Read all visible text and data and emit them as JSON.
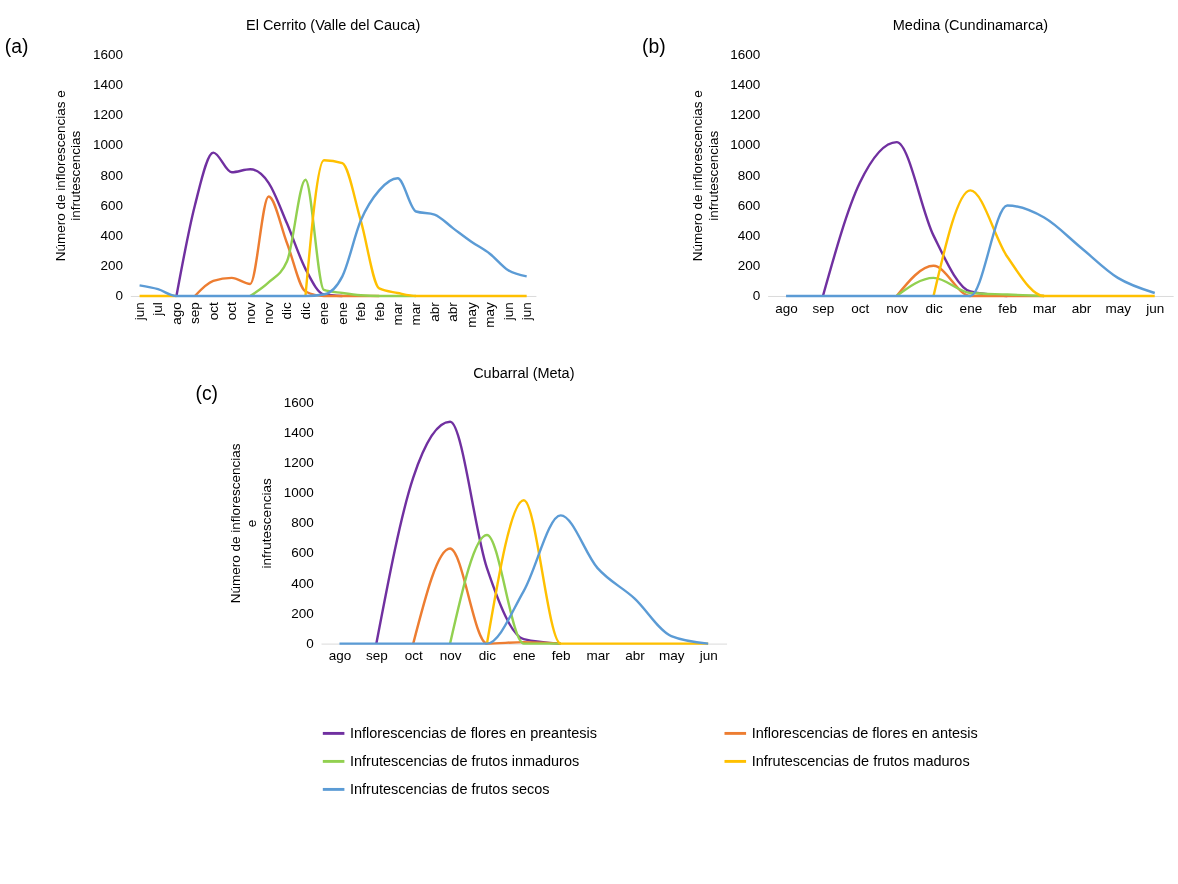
{
  "chart_data": [
    {
      "type": "line",
      "title": "El Cerrito (Valle del Cauca)",
      "ylabel": "Número  de inflorescencias e\ninfrutescencias",
      "annotations": [
        "(a)"
      ],
      "legend": "bottom",
      "grid": false,
      "marker": "none",
      "line_style": "solid",
      "categories": [
        "jun",
        "jul",
        "ago",
        "sep",
        "oct",
        "oct",
        "nov",
        "nov",
        "dic",
        "dic",
        "ene",
        "ene",
        "feb",
        "feb",
        "mar",
        "mar",
        "abr",
        "abr",
        "may",
        "may",
        "jun",
        "jun"
      ],
      "ylim": [
        0,
        1600
      ],
      "yticks": [
        0,
        200,
        400,
        600,
        800,
        1000,
        1200,
        1400,
        1600
      ],
      "series": [
        {
          "name": "Inflorescencias de flores  en preantesis",
          "color": "#7030a0",
          "values": [
            null,
            null,
            0,
            600,
            950,
            820,
            840,
            750,
            480,
            180,
            10,
            0,
            null,
            null,
            null,
            null,
            null,
            null,
            null,
            null,
            null,
            null
          ]
        },
        {
          "name": "Inflorescencias de flores  en antesis",
          "color": "#ed7d31",
          "values": [
            null,
            null,
            null,
            0,
            100,
            120,
            80,
            660,
            350,
            30,
            0,
            0,
            0,
            0,
            null,
            null,
            null,
            null,
            null,
            null,
            null,
            null
          ]
        },
        {
          "name": "Infrutescencias de frutos inmaduros",
          "color": "#92d050",
          "values": [
            null,
            null,
            null,
            null,
            null,
            null,
            0,
            90,
            230,
            770,
            40,
            20,
            5,
            0,
            0,
            0,
            null,
            null,
            null,
            null,
            null,
            null
          ]
        },
        {
          "name": "Infrutescencias de frutos maduros",
          "color": "#ffc000",
          "values": [
            0,
            0,
            0,
            null,
            null,
            null,
            null,
            null,
            null,
            0,
            900,
            880,
            500,
            50,
            20,
            0,
            0,
            0,
            0,
            0,
            0,
            0
          ]
        },
        {
          "name": "Infrutescencias de frutos secos",
          "color": "#5b9bd5",
          "values": [
            70,
            45,
            0,
            0,
            0,
            0,
            0,
            0,
            0,
            0,
            10,
            130,
            500,
            700,
            780,
            560,
            540,
            450,
            360,
            280,
            170,
            130
          ]
        }
      ]
    },
    {
      "type": "line",
      "title": "Medina (Cundinamarca)",
      "ylabel": "Número  de inflorescencias e\ninfrutescencias",
      "annotations": [
        "(b)"
      ],
      "grid": false,
      "marker": "none",
      "line_style": "solid",
      "categories": [
        "ago",
        "sep",
        "oct",
        "nov",
        "dic",
        "ene",
        "feb",
        "mar",
        "abr",
        "may",
        "jun"
      ],
      "ylim": [
        0,
        1600
      ],
      "yticks": [
        0,
        200,
        400,
        600,
        800,
        1000,
        1200,
        1400,
        1600
      ],
      "series": [
        {
          "color": "#7030a0",
          "values": [
            null,
            0,
            750,
            1020,
            400,
            30,
            0,
            null,
            null,
            null,
            null
          ]
        },
        {
          "color": "#ed7d31",
          "values": [
            null,
            null,
            null,
            0,
            200,
            0,
            0,
            0,
            null,
            null,
            null
          ]
        },
        {
          "color": "#92d050",
          "values": [
            null,
            null,
            null,
            0,
            120,
            20,
            10,
            0,
            null,
            null,
            null
          ]
        },
        {
          "color": "#ffc000",
          "values": [
            null,
            null,
            null,
            null,
            0,
            700,
            260,
            0,
            0,
            0,
            0
          ]
        },
        {
          "color": "#5b9bd5",
          "values": [
            0,
            0,
            0,
            0,
            0,
            0,
            600,
            520,
            320,
            120,
            20
          ]
        }
      ]
    },
    {
      "type": "line",
      "title": "Cubarral (Meta)",
      "ylabel": "Número  de inflorescencias\ne\ninfrutescencias",
      "annotations": [
        "(c)"
      ],
      "grid": false,
      "marker": "none",
      "line_style": "solid",
      "categories": [
        "ago",
        "sep",
        "oct",
        "nov",
        "dic",
        "ene",
        "feb",
        "mar",
        "abr",
        "may",
        "jun"
      ],
      "ylim": [
        0,
        1600
      ],
      "yticks": [
        0,
        200,
        400,
        600,
        800,
        1000,
        1200,
        1400,
        1600
      ],
      "series": [
        {
          "color": "#7030a0",
          "values": [
            null,
            0,
            1100,
            1470,
            500,
            30,
            0,
            null,
            null,
            null,
            null
          ]
        },
        {
          "color": "#ed7d31",
          "values": [
            null,
            null,
            0,
            630,
            0,
            10,
            0,
            null,
            null,
            null,
            null
          ]
        },
        {
          "color": "#92d050",
          "values": [
            null,
            null,
            null,
            0,
            720,
            0,
            0,
            null,
            null,
            null,
            null
          ]
        },
        {
          "color": "#ffc000",
          "values": [
            null,
            null,
            null,
            null,
            0,
            950,
            0,
            0,
            0,
            0,
            0
          ]
        },
        {
          "color": "#5b9bd5",
          "values": [
            0,
            0,
            0,
            0,
            0,
            350,
            850,
            500,
            300,
            50,
            0
          ]
        }
      ]
    }
  ]
}
